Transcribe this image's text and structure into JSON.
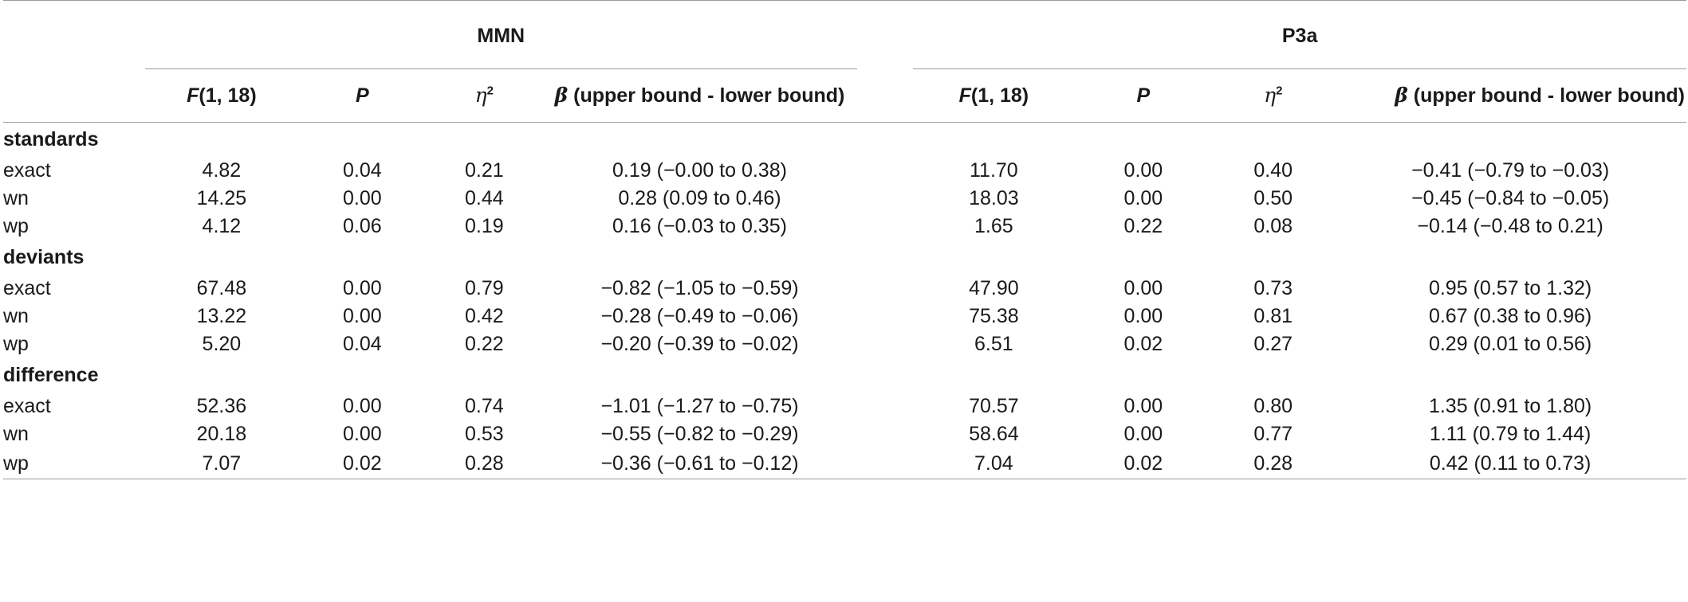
{
  "groups": {
    "left": "MMN",
    "right": "P3a"
  },
  "columns": {
    "f": "F",
    "f_args": "(1, 18)",
    "p": "P",
    "eta": "η",
    "eta_sup": "2",
    "beta": "β",
    "beta_text": " (upper bound - lower bound)"
  },
  "sections": [
    {
      "title": "standards",
      "rows": [
        {
          "label": "exact",
          "mmn": [
            "4.82",
            "0.04",
            "0.21",
            "0.19 (−0.00 to 0.38)"
          ],
          "p3a": [
            "11.70",
            "0.00",
            "0.40",
            "−0.41 (−0.79 to −0.03)"
          ]
        },
        {
          "label": "wn",
          "mmn": [
            "14.25",
            "0.00",
            "0.44",
            "0.28 (0.09 to 0.46)"
          ],
          "p3a": [
            "18.03",
            "0.00",
            "0.50",
            "−0.45 (−0.84 to −0.05)"
          ]
        },
        {
          "label": "wp",
          "mmn": [
            "4.12",
            "0.06",
            "0.19",
            "0.16 (−0.03 to 0.35)"
          ],
          "p3a": [
            "1.65",
            "0.22",
            "0.08",
            "−0.14 (−0.48 to 0.21)"
          ]
        }
      ]
    },
    {
      "title": "deviants",
      "rows": [
        {
          "label": "exact",
          "mmn": [
            "67.48",
            "0.00",
            "0.79",
            "−0.82 (−1.05 to −0.59)"
          ],
          "p3a": [
            "47.90",
            "0.00",
            "0.73",
            "0.95 (0.57 to 1.32)"
          ]
        },
        {
          "label": "wn",
          "mmn": [
            "13.22",
            "0.00",
            "0.42",
            "−0.28 (−0.49 to −0.06)"
          ],
          "p3a": [
            "75.38",
            "0.00",
            "0.81",
            "0.67 (0.38 to 0.96)"
          ]
        },
        {
          "label": "wp",
          "mmn": [
            "5.20",
            "0.04",
            "0.22",
            "−0.20 (−0.39 to −0.02)"
          ],
          "p3a": [
            "6.51",
            "0.02",
            "0.27",
            "0.29 (0.01 to 0.56)"
          ]
        }
      ]
    },
    {
      "title": "difference",
      "rows": [
        {
          "label": "exact",
          "mmn": [
            "52.36",
            "0.00",
            "0.74",
            "−1.01 (−1.27 to −0.75)"
          ],
          "p3a": [
            "70.57",
            "0.00",
            "0.80",
            "1.35 (0.91 to 1.80)"
          ]
        },
        {
          "label": "wn",
          "mmn": [
            "20.18",
            "0.00",
            "0.53",
            "−0.55 (−0.82 to −0.29)"
          ],
          "p3a": [
            "58.64",
            "0.00",
            "0.77",
            "1.11 (0.79 to 1.44)"
          ]
        },
        {
          "label": "wp",
          "mmn": [
            "7.07",
            "0.02",
            "0.28",
            "−0.36 (−0.61 to −0.12)"
          ],
          "p3a": [
            "7.04",
            "0.02",
            "0.28",
            "0.42 (0.11 to 0.73)"
          ]
        }
      ]
    }
  ]
}
